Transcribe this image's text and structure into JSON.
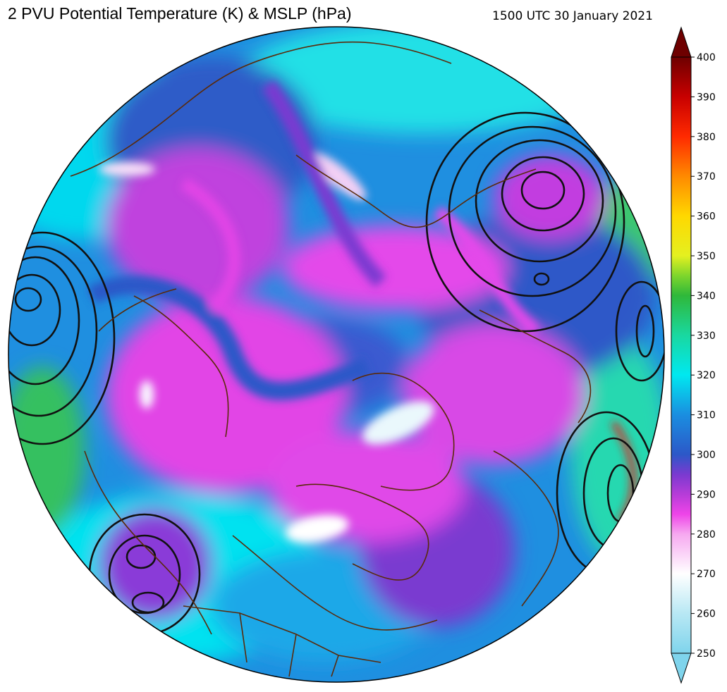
{
  "title": "2 PVU Potential Temperature (K) & MSLP (hPa)",
  "valid_time": "1500 UTC 30 January 2021",
  "colorbar": {
    "min": 250,
    "max": 400,
    "ticks": [
      "250",
      "260",
      "270",
      "280",
      "290",
      "300",
      "310",
      "320",
      "330",
      "340",
      "350",
      "360",
      "370",
      "380",
      "390",
      "400"
    ],
    "stops": [
      {
        "value": 250,
        "color": "#7fd4ec"
      },
      {
        "value": 260,
        "color": "#b8e8f4"
      },
      {
        "value": 270,
        "color": "#ffffff"
      },
      {
        "value": 280,
        "color": "#f6a8f0"
      },
      {
        "value": 285,
        "color": "#ee44e8"
      },
      {
        "value": 290,
        "color": "#b63cd8"
      },
      {
        "value": 295,
        "color": "#7a3ad0"
      },
      {
        "value": 300,
        "color": "#2c58c8"
      },
      {
        "value": 310,
        "color": "#1a8ee0"
      },
      {
        "value": 320,
        "color": "#00e8f0"
      },
      {
        "value": 330,
        "color": "#19d8a0"
      },
      {
        "value": 340,
        "color": "#2fb83a"
      },
      {
        "value": 345,
        "color": "#7ed62c"
      },
      {
        "value": 350,
        "color": "#e4f020"
      },
      {
        "value": 360,
        "color": "#ffd800"
      },
      {
        "value": 370,
        "color": "#ff8a00"
      },
      {
        "value": 380,
        "color": "#ff2a00"
      },
      {
        "value": 390,
        "color": "#c80000"
      },
      {
        "value": 400,
        "color": "#6e0000"
      }
    ]
  },
  "map": {
    "projection": "north polar stereographic",
    "fill_field": "potential temperature on 2 PVU surface",
    "contour_field": "mean sea level pressure",
    "contour_color": "#111111",
    "coastline_color": "#5a2a0a"
  }
}
